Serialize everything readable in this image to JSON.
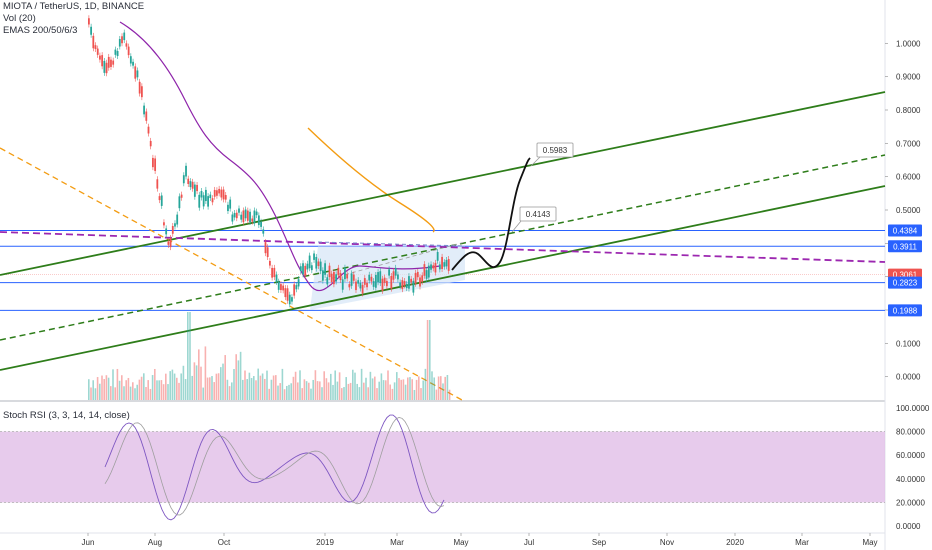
{
  "header": {
    "symbol_line": "MIOTA / TetherUS, 1D, BINANCE",
    "vol_label": "Vol (20)",
    "ema_label": "EMAS 200/50/6/3"
  },
  "stoch": {
    "label": "Stoch RSI (3, 3, 14, 14, close)"
  },
  "colors": {
    "green_line": "#2e7d1a",
    "orange_line": "#f39c12",
    "purple_dash": "#9c27b0",
    "blue_level": "#2962ff",
    "ema": "#8e24aa",
    "triangle_fill": "#d6e6f7",
    "stoch_band": "#e1bee7",
    "stoch_line": "#7e57c2",
    "up_candle": "#26a69a",
    "down_candle": "#ef5350"
  },
  "chart_data": [
    {
      "type": "line",
      "title": "MIOTA / TetherUS, 1D, BINANCE",
      "x_ticks": [
        "Jun",
        "Aug",
        "Oct",
        "2019",
        "Mar",
        "May",
        "Jul",
        "Sep",
        "Nov",
        "2020",
        "Mar",
        "May"
      ],
      "y_ticks": [
        "1.0000",
        "0.9000",
        "0.8000",
        "0.7000",
        "0.6000",
        "0.5000",
        "0.4000",
        "0.3000",
        "0.2000",
        "0.1000",
        "0.0000"
      ],
      "ylim": [
        -0.07,
        1.1
      ],
      "price_labels": [
        {
          "label": "0.4384",
          "value": 0.4384,
          "color": "#2962ff"
        },
        {
          "label": "0.3911",
          "value": 0.3911,
          "color": "#2962ff"
        },
        {
          "label": "0.3061",
          "value": 0.3061,
          "color": "#ef5350"
        },
        {
          "label": "0.2823",
          "value": 0.2823,
          "color": "#2962ff"
        },
        {
          "label": "0.1988",
          "value": 0.1988,
          "color": "#2962ff"
        }
      ],
      "annotations": [
        {
          "text": "0.5983",
          "value": 0.5983
        },
        {
          "text": "0.4143",
          "value": 0.4143
        }
      ],
      "series": [
        {
          "name": "price",
          "points": [
            [
              0,
              1.05
            ],
            [
              0.25,
              0.96
            ],
            [
              0.5,
              0.92
            ],
            [
              0.75,
              0.97
            ],
            [
              1.0,
              1.0
            ],
            [
              1.25,
              0.95
            ],
            [
              1.5,
              0.85
            ],
            [
              1.75,
              0.7
            ],
            [
              2.0,
              0.55
            ],
            [
              2.25,
              0.38
            ],
            [
              2.5,
              0.48
            ],
            [
              2.75,
              0.62
            ],
            [
              3.0,
              0.55
            ],
            [
              3.25,
              0.53
            ],
            [
              3.5,
              0.55
            ],
            [
              3.75,
              0.54
            ],
            [
              4.0,
              0.5
            ],
            [
              4.25,
              0.48
            ],
            [
              4.5,
              0.5
            ],
            [
              4.75,
              0.48
            ],
            [
              5.0,
              0.4
            ],
            [
              5.25,
              0.3
            ],
            [
              5.5,
              0.25
            ],
            [
              5.75,
              0.22
            ],
            [
              6.0,
              0.31
            ],
            [
              6.25,
              0.35
            ],
            [
              6.5,
              0.33
            ],
            [
              6.75,
              0.3
            ],
            [
              7.0,
              0.31
            ],
            [
              7.25,
              0.29
            ],
            [
              7.5,
              0.28
            ],
            [
              7.75,
              0.27
            ],
            [
              8.0,
              0.29
            ],
            [
              8.25,
              0.28
            ],
            [
              8.5,
              0.3
            ],
            [
              8.75,
              0.3
            ],
            [
              9.0,
              0.28
            ],
            [
              9.25,
              0.29
            ],
            [
              9.5,
              0.31
            ],
            [
              9.75,
              0.35
            ],
            [
              10.0,
              0.33
            ],
            [
              10.25,
              0.31
            ]
          ]
        },
        {
          "name": "projection",
          "points": [
            [
              10.3,
              0.3
            ],
            [
              10.6,
              0.34
            ],
            [
              10.9,
              0.36
            ],
            [
              11.2,
              0.33
            ],
            [
              11.5,
              0.31
            ],
            [
              11.8,
              0.33
            ],
            [
              12.1,
              0.42
            ],
            [
              12.4,
              0.52
            ],
            [
              12.7,
              0.59
            ],
            [
              12.85,
              0.6
            ]
          ]
        }
      ]
    },
    {
      "type": "line",
      "title": "Stoch RSI (3, 3, 14, 14, close)",
      "y_ticks": [
        "100.0000",
        "80.0000",
        "60.0000",
        "40.0000",
        "20.0000",
        "0.0000"
      ],
      "ylim": [
        -5,
        105
      ],
      "band": [
        20,
        80
      ]
    }
  ]
}
